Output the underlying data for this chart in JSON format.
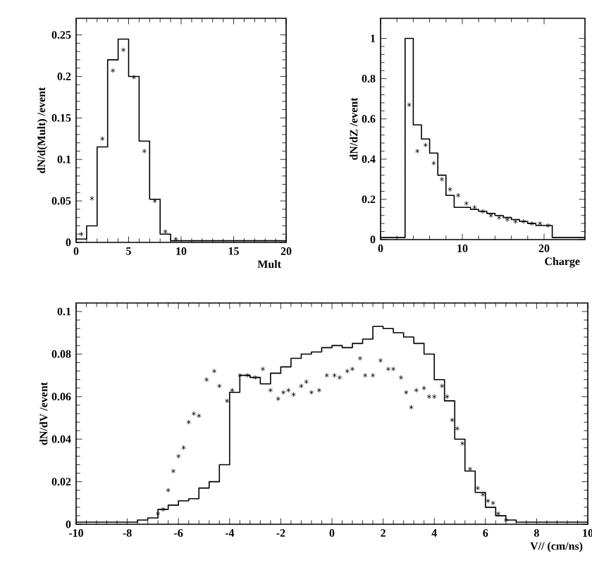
{
  "chart_data": [
    {
      "type": "histogram",
      "xlabel": "Mult",
      "ylabel": "dN/d(Mult) /event",
      "color": "#000000",
      "marker": "cross",
      "bins": [
        0,
        1,
        2,
        3,
        4,
        5,
        6,
        7,
        8,
        9,
        10,
        11,
        12,
        13,
        14,
        15,
        16,
        17,
        18,
        19,
        20
      ],
      "values": [
        0.004,
        0.02,
        0.115,
        0.22,
        0.245,
        0.2,
        0.122,
        0.052,
        0.01,
        0.002,
        0.002,
        0.002,
        0.002,
        0.002,
        0.002,
        0.002,
        0.002,
        0.002,
        0.002,
        0.002
      ],
      "series": [
        {
          "type": "scatter",
          "color": "#000000",
          "x": [
            0.5,
            1.5,
            2.5,
            3.5,
            4.5,
            5.5,
            6.5,
            7.5,
            8.5,
            9.5
          ],
          "values": [
            0.01,
            0.053,
            0.125,
            0.207,
            0.232,
            0.199,
            0.11,
            0.05,
            0.013,
            0.004
          ]
        }
      ],
      "xlim": [
        0,
        20
      ],
      "ylim": [
        0,
        0.27
      ],
      "xticks": [
        0,
        5,
        10,
        15,
        20
      ],
      "yticks": [
        0,
        0.05,
        0.1,
        0.15,
        0.2,
        0.25
      ]
    },
    {
      "type": "histogram",
      "xlabel": "Charge",
      "ylabel": "dN/dZ /event",
      "color": "#000000",
      "marker": "cross",
      "bins": [
        0,
        1,
        2,
        3,
        4,
        5,
        6,
        7,
        8,
        9,
        10,
        11,
        12,
        13,
        14,
        15,
        16,
        17,
        18,
        19,
        20,
        21,
        22,
        23,
        24,
        25
      ],
      "values": [
        0.01,
        0.01,
        0.01,
        1.0,
        0.57,
        0.5,
        0.43,
        0.32,
        0.22,
        0.16,
        0.16,
        0.15,
        0.14,
        0.13,
        0.12,
        0.11,
        0.1,
        0.09,
        0.08,
        0.07,
        0.07,
        0.01,
        0.01,
        0.01,
        0.01
      ],
      "series": [
        {
          "type": "scatter",
          "color": "#000000",
          "x": [
            3.5,
            4.5,
            5.5,
            6.5,
            7.5,
            8.5,
            9.5,
            10.5,
            11.5,
            12.5,
            13.5,
            14.5,
            15.5,
            16.5,
            17.5,
            18.5,
            19.5,
            20.5
          ],
          "values": [
            0.67,
            0.44,
            0.47,
            0.38,
            0.3,
            0.25,
            0.22,
            0.18,
            0.16,
            0.14,
            0.12,
            0.11,
            0.1,
            0.09,
            0.09,
            0.08,
            0.08,
            0.07
          ]
        }
      ],
      "xlim": [
        0,
        25
      ],
      "ylim": [
        0,
        1.1
      ],
      "xticks": [
        0,
        10,
        20
      ],
      "yticks": [
        0,
        0.2,
        0.4,
        0.6,
        0.8,
        1
      ]
    },
    {
      "type": "histogram",
      "xlabel": "V// (cm/ns)",
      "ylabel": "dN/dV /event",
      "color": "#000000",
      "marker": "cross",
      "bins": [
        -10,
        -9.6,
        -9.2,
        -8.8,
        -8.4,
        -8,
        -7.6,
        -7.2,
        -6.8,
        -6.4,
        -6,
        -5.6,
        -5.2,
        -4.8,
        -4.4,
        -4,
        -3.6,
        -3.2,
        -2.8,
        -2.4,
        -2,
        -1.6,
        -1.2,
        -0.8,
        -0.4,
        0,
        0.4,
        0.8,
        1.2,
        1.6,
        2,
        2.4,
        2.8,
        3.2,
        3.6,
        4,
        4.4,
        4.8,
        5.2,
        5.6,
        6,
        6.4,
        6.8,
        7.2,
        7.6,
        8,
        8.4,
        8.8,
        9.2,
        9.6,
        10
      ],
      "values": [
        0.001,
        0.001,
        0.001,
        0.001,
        0.001,
        0.001,
        0.002,
        0.003,
        0.007,
        0.009,
        0.011,
        0.012,
        0.017,
        0.02,
        0.028,
        0.062,
        0.07,
        0.069,
        0.066,
        0.071,
        0.074,
        0.078,
        0.08,
        0.081,
        0.083,
        0.084,
        0.083,
        0.085,
        0.087,
        0.093,
        0.092,
        0.09,
        0.088,
        0.085,
        0.08,
        0.068,
        0.058,
        0.04,
        0.025,
        0.015,
        0.008,
        0.004,
        0.002,
        0.001,
        0.001,
        0.001,
        0.001,
        0.001,
        0.001,
        0.001
      ],
      "series": [
        {
          "type": "scatter",
          "color": "#000000",
          "x": [
            -6.8,
            -6.6,
            -6.4,
            -6.2,
            -6.0,
            -5.8,
            -5.6,
            -5.4,
            -5.2,
            -4.9,
            -4.6,
            -4.4,
            -4.1,
            -3.9,
            -3.6,
            -3.3,
            -3.0,
            -2.7,
            -2.4,
            -2.1,
            -1.9,
            -1.7,
            -1.5,
            -1.2,
            -1.0,
            -0.8,
            -0.5,
            -0.2,
            0.1,
            0.3,
            0.6,
            0.8,
            1.1,
            1.3,
            1.6,
            1.9,
            2.2,
            2.4,
            2.7,
            2.9,
            3.1,
            3.3,
            3.6,
            3.8,
            4.0,
            4.3,
            4.5,
            4.7,
            4.9,
            5.1,
            5.4,
            5.7,
            5.9,
            6.1,
            6.3,
            6.5,
            6.8
          ],
          "values": [
            0.005,
            0.007,
            0.016,
            0.025,
            0.032,
            0.036,
            0.048,
            0.052,
            0.051,
            0.068,
            0.072,
            0.065,
            0.058,
            0.063,
            0.07,
            0.07,
            0.069,
            0.073,
            0.063,
            0.059,
            0.062,
            0.063,
            0.061,
            0.065,
            0.067,
            0.062,
            0.063,
            0.07,
            0.07,
            0.069,
            0.072,
            0.073,
            0.078,
            0.07,
            0.07,
            0.077,
            0.073,
            0.073,
            0.069,
            0.062,
            0.055,
            0.063,
            0.064,
            0.06,
            0.06,
            0.065,
            0.06,
            0.049,
            0.045,
            0.038,
            0.026,
            0.017,
            0.014,
            0.011,
            0.01,
            0.005,
            0.002
          ]
        }
      ],
      "xlim": [
        -10,
        10
      ],
      "ylim": [
        0,
        0.104
      ],
      "xticks": [
        -10,
        -8,
        -6,
        -4,
        -2,
        0,
        2,
        4,
        6,
        8,
        10
      ],
      "yticks": [
        0,
        0.02,
        0.04,
        0.06,
        0.08,
        0.1
      ]
    }
  ]
}
